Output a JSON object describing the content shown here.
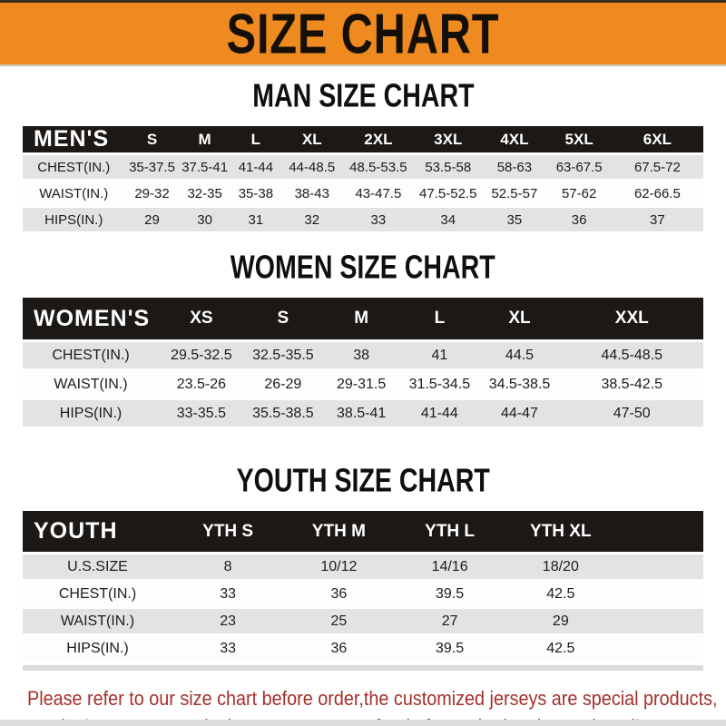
{
  "banner": {
    "title": "SIZE CHART"
  },
  "man": {
    "heading": "MAN SIZE CHART",
    "header_label": "MEN'S",
    "columns": [
      "S",
      "M",
      "L",
      "XL",
      "2XL",
      "3XL",
      "4XL",
      "5XL",
      "6XL"
    ],
    "rows": [
      {
        "label": "CHEST(IN.)",
        "values": [
          "35-37.5",
          "37.5-41",
          "41-44",
          "44-48.5",
          "48.5-53.5",
          "53.5-58",
          "58-63",
          "63-67.5",
          "67.5-72"
        ]
      },
      {
        "label": "WAIST(IN.)",
        "values": [
          "29-32",
          "32-35",
          "35-38",
          "38-43",
          "43-47.5",
          "47.5-52.5",
          "52.5-57",
          "57-62",
          "62-66.5"
        ]
      },
      {
        "label": "HIPS(IN.)",
        "values": [
          "29",
          "30",
          "31",
          "32",
          "33",
          "34",
          "35",
          "36",
          "37"
        ]
      }
    ]
  },
  "women": {
    "heading": "WOMEN SIZE CHART",
    "header_label": "WOMEN'S",
    "columns": [
      "XS",
      "S",
      "M",
      "L",
      "XL",
      "XXL"
    ],
    "rows": [
      {
        "label": "CHEST(IN.)",
        "values": [
          "29.5-32.5",
          "32.5-35.5",
          "38",
          "41",
          "44.5",
          "44.5-48.5"
        ]
      },
      {
        "label": "WAIST(IN.)",
        "values": [
          "23.5-26",
          "26-29",
          "29-31.5",
          "31.5-34.5",
          "34.5-38.5",
          "38.5-42.5"
        ]
      },
      {
        "label": "HIPS(IN.)",
        "values": [
          "33-35.5",
          "35.5-38.5",
          "38.5-41",
          "41-44",
          "44-47",
          "47-50"
        ]
      }
    ]
  },
  "youth": {
    "heading": "YOUTH SIZE CHART",
    "header_label": "YOUTH",
    "columns": [
      "YTH S",
      "YTH M",
      "YTH L",
      "YTH XL"
    ],
    "rows": [
      {
        "label": "U.S.SIZE",
        "values": [
          "8",
          "10/12",
          "14/16",
          "18/20"
        ]
      },
      {
        "label": "CHEST(IN.)",
        "values": [
          "33",
          "36",
          "39.5",
          "42.5"
        ]
      },
      {
        "label": "WAIST(IN.)",
        "values": [
          "23",
          "25",
          "27",
          "29"
        ]
      },
      {
        "label": "HIPS(IN.)",
        "values": [
          "33",
          "36",
          "39.5",
          "42.5"
        ]
      }
    ]
  },
  "note": {
    "line1": "Please refer to our size chart before order,the customized jerseys are special products,",
    "line2": "we don't accept cancel, change, teturn or refund after order has been placed!"
  },
  "colors": {
    "banner_orange": "#EE8A1F",
    "header_bar_black": "#1B1816",
    "row_gray": "#E3E3E3",
    "note_red": "#A4302B"
  }
}
